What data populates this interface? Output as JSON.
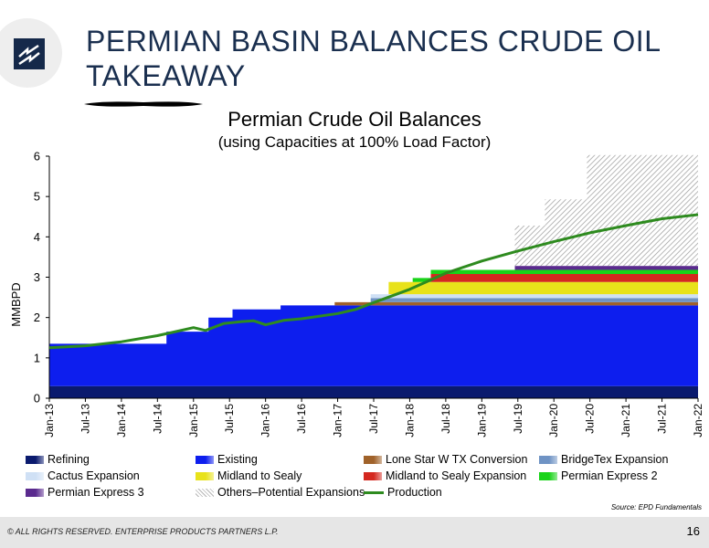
{
  "slide": {
    "title": "PERMIAN BASIN BALANCES CRUDE OIL TAKEAWAY",
    "source": "Source: EPD Fundamentals",
    "copyright": "© ALL RIGHTS RESERVED. ENTERPRISE PRODUCTS PARTNERS L.P.",
    "page_number": "16"
  },
  "chart_data": {
    "type": "area",
    "title": "Permian Crude Oil Balances",
    "subtitle": "(using Capacities at 100% Load Factor)",
    "ylabel": "MMBPD",
    "xlabel": "",
    "ylim": [
      0,
      6
    ],
    "yticks": [
      "0",
      "1",
      "2",
      "3",
      "4",
      "5",
      "6"
    ],
    "x_range": [
      "Jan-13",
      "Jan-22"
    ],
    "xticks": [
      "Jan-13",
      "Jul-13",
      "Jan-14",
      "Jul-14",
      "Jan-15",
      "Jul-15",
      "Jan-16",
      "Jul-16",
      "Jan-17",
      "Jul-17",
      "Jan-18",
      "Jul-18",
      "Jan-19",
      "Jul-19",
      "Jan-20",
      "Jul-20",
      "Jan-21",
      "Jul-21",
      "Jan-22"
    ],
    "series": [
      {
        "name": "Refining",
        "color": "#0a1a6e",
        "kind": "stacked-area",
        "points": [
          [
            "Jan-13",
            0.3
          ],
          [
            "Jan-22",
            0.3
          ]
        ]
      },
      {
        "name": "Existing",
        "color": "#0d1eee",
        "kind": "stacked-area",
        "points": [
          [
            "Jan-13",
            1.05
          ],
          [
            "Jun-14",
            1.05
          ],
          [
            "Sep-14",
            1.35
          ],
          [
            "Mar-15",
            1.35
          ],
          [
            "Apr-15",
            1.7
          ],
          [
            "Jul-15",
            1.7
          ],
          [
            "Aug-15",
            1.9
          ],
          [
            "Feb-16",
            1.9
          ],
          [
            "Apr-16",
            2.0
          ],
          [
            "Nov-16",
            2.0
          ],
          [
            "Jan-17",
            2.0
          ],
          [
            "Jan-22",
            2.0
          ]
        ]
      },
      {
        "name": "Lone Star W TX Conversion",
        "color": "#a0622a",
        "kind": "stacked-area",
        "points": [
          [
            "Jan-13",
            0
          ],
          [
            "Dec-16",
            0
          ],
          [
            "Jan-17",
            0.08
          ],
          [
            "Jan-22",
            0.08
          ]
        ]
      },
      {
        "name": "BridgeTex Expansion",
        "color": "#6f93c4",
        "kind": "stacked-area",
        "points": [
          [
            "Jan-13",
            0
          ],
          [
            "Jun-17",
            0
          ],
          [
            "Jul-17",
            0.1
          ],
          [
            "Jan-22",
            0.1
          ]
        ]
      },
      {
        "name": "Cactus Expansion",
        "color": "#cfe0f5",
        "kind": "stacked-area",
        "points": [
          [
            "Jan-13",
            0
          ],
          [
            "Jun-17",
            0
          ],
          [
            "Jul-17",
            0.1
          ],
          [
            "Jan-22",
            0.1
          ]
        ]
      },
      {
        "name": "Midland to Sealy",
        "color": "#e8e21a",
        "kind": "stacked-area",
        "points": [
          [
            "Jan-13",
            0
          ],
          [
            "Sep-17",
            0
          ],
          [
            "Oct-17",
            0.3
          ],
          [
            "Jan-22",
            0.3
          ]
        ]
      },
      {
        "name": "Midland to Sealy Expansion",
        "color": "#d4281f",
        "kind": "stacked-area",
        "points": [
          [
            "Jan-13",
            0
          ],
          [
            "Apr-18",
            0
          ],
          [
            "May-18",
            0.2
          ],
          [
            "Jan-22",
            0.2
          ]
        ]
      },
      {
        "name": "Permian Express 2",
        "color": "#19d319",
        "kind": "stacked-area",
        "points": [
          [
            "Jan-13",
            0
          ],
          [
            "Jan-18",
            0
          ],
          [
            "Feb-18",
            0.1
          ],
          [
            "Jan-22",
            0.1
          ]
        ]
      },
      {
        "name": "Permian Express 3",
        "color": "#5a2a8e",
        "kind": "stacked-area",
        "points": [
          [
            "Jan-13",
            0
          ],
          [
            "Jun-19",
            0
          ],
          [
            "Jul-19",
            0.1
          ],
          [
            "Jan-22",
            0.1
          ]
        ]
      },
      {
        "name": "Others–Potential Expansions",
        "color": "#b5b5b5",
        "kind": "hatched-area",
        "points": [
          [
            "Jan-13",
            0
          ],
          [
            "Jun-19",
            0
          ],
          [
            "Jul-19",
            1.0
          ],
          [
            "Nov-19",
            1.0
          ],
          [
            "Dec-19",
            1.65
          ],
          [
            "Jun-20",
            1.65
          ],
          [
            "Jul-20",
            2.75
          ],
          [
            "Jan-22",
            2.75
          ]
        ]
      },
      {
        "name": "Production",
        "color": "#2e8b1f",
        "kind": "line",
        "points": [
          [
            "Jan-13",
            1.25
          ],
          [
            "Jul-13",
            1.3
          ],
          [
            "Jan-14",
            1.4
          ],
          [
            "Jul-14",
            1.55
          ],
          [
            "Oct-14",
            1.65
          ],
          [
            "Jan-15",
            1.75
          ],
          [
            "Mar-15",
            1.68
          ],
          [
            "Jun-15",
            1.85
          ],
          [
            "Sep-15",
            1.9
          ],
          [
            "Nov-15",
            1.92
          ],
          [
            "Jan-16",
            1.82
          ],
          [
            "Apr-16",
            1.93
          ],
          [
            "Jul-16",
            1.97
          ],
          [
            "Jan-17",
            2.1
          ],
          [
            "Apr-17",
            2.2
          ],
          [
            "Jul-17",
            2.37
          ],
          [
            "Jan-18",
            2.7
          ],
          [
            "Jul-18",
            3.1
          ],
          [
            "Jan-19",
            3.4
          ],
          [
            "Jul-19",
            3.65
          ],
          [
            "Jan-20",
            3.88
          ],
          [
            "Jul-20",
            4.1
          ],
          [
            "Jan-21",
            4.28
          ],
          [
            "Jul-21",
            4.45
          ],
          [
            "Jan-22",
            4.55
          ]
        ]
      }
    ]
  },
  "legend": {
    "items": [
      {
        "label": "Refining",
        "color": "#0a1a6e",
        "style": "box"
      },
      {
        "label": "Existing",
        "color": "#0d1eee",
        "style": "box"
      },
      {
        "label": "Lone Star W TX Conversion",
        "color": "#a0622a",
        "style": "box"
      },
      {
        "label": "BridgeTex Expansion",
        "color": "#6f93c4",
        "style": "box"
      },
      {
        "label": "Cactus Expansion",
        "color": "#cfe0f5",
        "style": "box"
      },
      {
        "label": "Midland to Sealy",
        "color": "#e8e21a",
        "style": "box"
      },
      {
        "label": "Midland to Sealy Expansion",
        "color": "#d4281f",
        "style": "box"
      },
      {
        "label": "Permian Express 2",
        "color": "#19d319",
        "style": "box"
      },
      {
        "label": "Permian Express 3",
        "color": "#5a2a8e",
        "style": "box"
      },
      {
        "label": "Others–Potential Expansions",
        "color": "#b5b5b5",
        "style": "hatch"
      },
      {
        "label": "Production",
        "color": "#2e8b1f",
        "style": "line"
      }
    ]
  },
  "colors": {
    "title": "#1a2f4f",
    "logo": "#15294a",
    "footer": "#e6e6e6"
  }
}
